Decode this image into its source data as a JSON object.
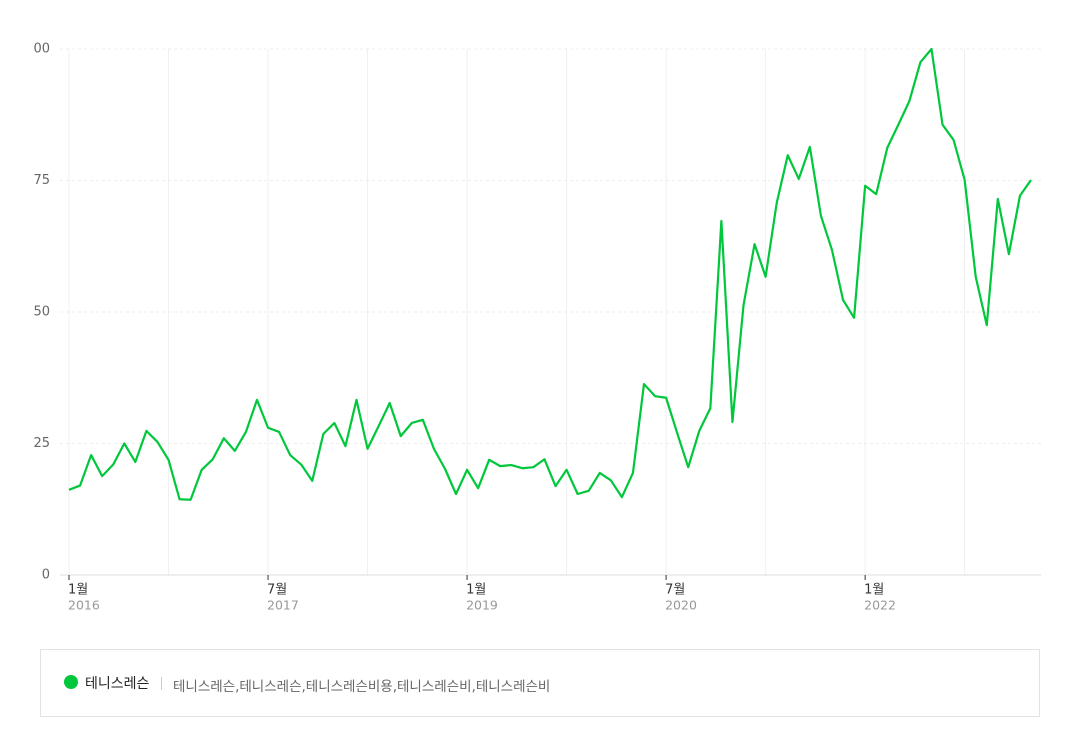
{
  "chart_data": {
    "type": "line",
    "categories": [
      [
        "1월",
        "2016"
      ],
      null,
      null,
      null,
      null,
      null,
      null,
      null,
      null,
      null,
      null,
      null,
      null,
      null,
      null,
      null,
      null,
      null,
      [
        "7월",
        "2017"
      ],
      null,
      null,
      null,
      null,
      null,
      null,
      null,
      null,
      null,
      null,
      null,
      null,
      null,
      null,
      null,
      null,
      null,
      [
        "1월",
        "2019"
      ],
      null,
      null,
      null,
      null,
      null,
      null,
      null,
      null,
      null,
      null,
      null,
      null,
      null,
      null,
      null,
      null,
      null,
      [
        "7월",
        "2020"
      ],
      null,
      null,
      null,
      null,
      null,
      null,
      null,
      null,
      null,
      null,
      null,
      null,
      null,
      null,
      null,
      null,
      null,
      [
        "1월",
        "2022"
      ],
      null,
      null,
      null,
      null,
      null,
      null,
      null,
      null,
      null,
      null,
      null,
      null,
      null,
      null,
      null
    ],
    "series": [
      {
        "name": "테니스레슨",
        "keywords": "테니스레슨,테니스레슨,테니스레슨비용,테니스레슨비,테니스레슨비",
        "color": "#00c73c",
        "values": [
          16.2,
          17,
          22.8,
          18.8,
          21,
          25,
          21.5,
          27.4,
          25.3,
          21.9,
          14.4,
          14.3,
          20,
          22,
          26,
          23.6,
          27.2,
          33.3,
          28,
          27.2,
          22.8,
          21,
          17.9,
          26.8,
          28.9,
          24.5,
          33.3,
          24,
          28.3,
          32.7,
          26.4,
          28.9,
          29.5,
          24,
          20.2,
          15.4,
          20,
          16.5,
          21.9,
          20.7,
          20.9,
          20.3,
          20.5,
          22,
          16.9,
          20,
          15.4,
          16,
          19.4,
          18,
          14.8,
          19.4,
          36.3,
          34,
          33.7,
          27,
          20.5,
          27.4,
          31.7,
          67.3,
          29.1,
          51.3,
          62.9,
          56.7,
          70.7,
          79.8,
          75.3,
          81.4,
          68.3,
          61.8,
          52.3,
          48.9,
          74,
          72.4,
          81.2,
          85.6,
          90.1,
          97.5,
          100,
          85.6,
          82.7,
          75.1,
          56.7,
          47.5,
          71.5,
          61,
          72.1,
          75.1
        ]
      }
    ],
    "ylim": [
      0,
      100
    ],
    "yticks": [
      0,
      25,
      50,
      75,
      {
        "value": 100,
        "label": "00"
      }
    ],
    "grid": true
  }
}
